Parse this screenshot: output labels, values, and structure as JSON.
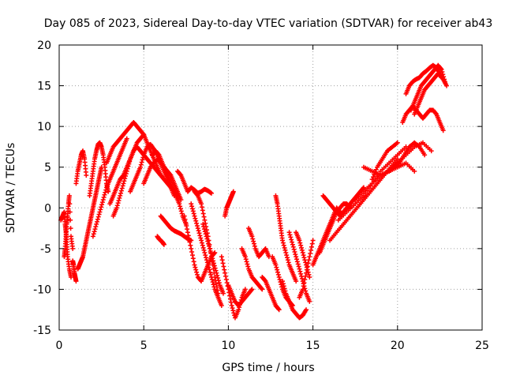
{
  "chart_data": {
    "type": "scatter",
    "title": "Day 085 of 2023, Sidereal Day-to-day VTEC variation (SDTVAR) for receiver ab43",
    "xlabel": "GPS time / hours",
    "ylabel": "SDTVAR / TECUs",
    "xlim": [
      0,
      25
    ],
    "ylim": [
      -15,
      20
    ],
    "xticks": [
      "0",
      "5",
      "10",
      "15",
      "20",
      "25"
    ],
    "yticks": [
      "-15",
      "-10",
      "-5",
      "0",
      "5",
      "10",
      "15",
      "20"
    ],
    "grid": true,
    "marker": "+",
    "color": "#ff0000",
    "series": [
      {
        "x": [
          0.1,
          0.2,
          0.3,
          0.35,
          0.4,
          0.45,
          0.5,
          0.6,
          0.7
        ],
        "y": [
          -1.5,
          -1.0,
          -0.5,
          -2.0,
          -3.0,
          -4.5,
          -6.0,
          -7.5,
          -8.5
        ]
      },
      {
        "x": [
          0.3,
          0.35,
          0.4,
          0.45,
          0.5,
          0.55,
          0.6,
          0.7,
          0.8
        ],
        "y": [
          -6.0,
          -5.0,
          -3.5,
          -2.0,
          -1.0,
          0.5,
          1.5,
          -3.5,
          -5.0
        ]
      },
      {
        "x": [
          0.8,
          0.85,
          0.9,
          0.95,
          1.0
        ],
        "y": [
          -6.5,
          -7.0,
          -8.0,
          -8.5,
          -9.0
        ]
      },
      {
        "x": [
          1.0,
          1.1,
          1.2,
          1.3,
          1.4,
          1.5,
          1.6
        ],
        "y": [
          3.0,
          4.5,
          5.5,
          6.5,
          7.0,
          6.0,
          4.0
        ]
      },
      {
        "x": [
          1.1,
          1.2,
          1.3,
          1.4,
          1.5,
          1.6,
          1.7,
          1.8,
          1.9,
          2.0,
          2.1,
          2.2,
          2.3,
          2.4,
          2.5
        ],
        "y": [
          -7.5,
          -7.0,
          -6.5,
          -6.0,
          -5.0,
          -4.0,
          -3.0,
          -2.0,
          -1.0,
          0.0,
          1.0,
          2.0,
          3.0,
          4.0,
          5.0
        ]
      },
      {
        "x": [
          1.8,
          1.9,
          2.0,
          2.1,
          2.2,
          2.3,
          2.4,
          2.5,
          2.6,
          2.7,
          2.8,
          2.9
        ],
        "y": [
          1.5,
          3.0,
          4.5,
          6.0,
          7.0,
          7.8,
          8.0,
          7.5,
          6.5,
          5.0,
          3.0,
          2.0
        ]
      },
      {
        "x": [
          2.0,
          2.2,
          2.4,
          2.6,
          2.8,
          3.0,
          3.2,
          3.4,
          3.6,
          3.8,
          4.0
        ],
        "y": [
          -3.5,
          -2.0,
          -0.5,
          1.0,
          2.5,
          3.5,
          4.5,
          5.5,
          6.5,
          7.5,
          8.5
        ]
      },
      {
        "x": [
          2.8,
          3.0,
          3.2,
          3.4,
          3.6,
          3.8,
          4.0,
          4.2,
          4.4,
          4.6,
          4.8,
          5.0
        ],
        "y": [
          5.5,
          6.5,
          7.5,
          8.0,
          8.5,
          9.0,
          9.5,
          10.0,
          10.5,
          10.0,
          9.5,
          9.0
        ]
      },
      {
        "x": [
          3.0,
          3.2,
          3.4,
          3.6,
          3.8,
          4.0,
          4.2,
          4.4,
          4.6,
          4.8,
          5.0,
          5.2,
          5.4,
          5.6,
          5.8,
          6.0
        ],
        "y": [
          0.5,
          1.5,
          2.5,
          3.5,
          4.0,
          5.0,
          6.0,
          7.0,
          8.0,
          8.5,
          9.0,
          8.0,
          7.0,
          6.0,
          5.0,
          4.0
        ]
      },
      {
        "x": [
          3.2,
          3.4,
          3.6,
          3.8,
          4.0,
          4.2,
          4.4,
          4.6,
          4.8,
          5.0,
          5.2,
          5.4,
          5.6,
          5.8,
          6.0,
          6.2,
          6.4,
          6.6,
          6.8,
          7.0
        ],
        "y": [
          -1.0,
          0.0,
          1.5,
          3.0,
          4.5,
          6.0,
          7.0,
          7.5,
          7.0,
          6.5,
          6.0,
          5.5,
          5.0,
          4.5,
          4.0,
          3.5,
          3.0,
          2.5,
          2.0,
          1.5
        ]
      },
      {
        "x": [
          4.2,
          4.4,
          4.6,
          4.8,
          5.0,
          5.2,
          5.4,
          5.6,
          5.8,
          6.0,
          6.2,
          6.4,
          6.6,
          6.8
        ],
        "y": [
          2.0,
          3.0,
          4.0,
          5.0,
          6.5,
          7.5,
          7.8,
          7.2,
          6.5,
          5.5,
          4.5,
          3.5,
          2.5,
          1.5
        ]
      },
      {
        "x": [
          5.0,
          5.2,
          5.4,
          5.6,
          5.8,
          6.0,
          6.2,
          6.4,
          6.6,
          6.8,
          7.0,
          7.2
        ],
        "y": [
          3.0,
          4.0,
          5.0,
          5.5,
          6.0,
          5.5,
          5.0,
          4.5,
          4.0,
          3.0,
          2.0,
          1.0
        ]
      },
      {
        "x": [
          5.5,
          5.7,
          5.9,
          6.1,
          6.3,
          6.5,
          6.7,
          6.9,
          7.1,
          7.3,
          7.5
        ],
        "y": [
          6.5,
          7.0,
          6.5,
          5.5,
          4.5,
          3.5,
          2.5,
          1.5,
          0.5,
          -1.0,
          -2.0
        ]
      },
      {
        "x": [
          5.8,
          5.9,
          6.0,
          6.1,
          6.2
        ],
        "y": [
          -3.5,
          -3.8,
          -4.0,
          -4.2,
          -4.5
        ]
      },
      {
        "x": [
          6.0,
          6.2,
          6.4,
          6.6,
          6.8,
          7.0,
          7.2,
          7.4,
          7.6,
          7.8
        ],
        "y": [
          -1.0,
          -1.5,
          -2.0,
          -2.5,
          -2.8,
          -3.0,
          -3.2,
          -3.5,
          -3.8,
          -4.0
        ]
      },
      {
        "x": [
          7.0,
          7.2,
          7.4,
          7.6,
          7.8,
          8.0,
          8.2,
          8.4,
          8.6,
          8.8,
          9.0
        ],
        "y": [
          4.5,
          4.0,
          3.0,
          2.0,
          2.5,
          2.2,
          1.8,
          2.0,
          2.3,
          2.1,
          1.8
        ]
      },
      {
        "x": [
          7.4,
          7.6,
          7.8,
          8.0,
          8.2,
          8.4,
          8.6,
          8.8,
          9.0,
          9.2
        ],
        "y": [
          -1.0,
          -3.0,
          -5.0,
          -7.0,
          -8.5,
          -9.0,
          -8.0,
          -7.0,
          -6.0,
          -5.5
        ]
      },
      {
        "x": [
          7.8,
          8.0,
          8.2,
          8.4,
          8.6,
          8.8,
          9.0,
          9.2,
          9.4,
          9.6
        ],
        "y": [
          0.5,
          -1.0,
          -2.5,
          -4.0,
          -5.5,
          -7.0,
          -8.5,
          -10.0,
          -11.0,
          -12.0
        ]
      },
      {
        "x": [
          8.0,
          8.2,
          8.4,
          8.6,
          8.8,
          9.0,
          9.2,
          9.4
        ],
        "y": [
          2.0,
          1.5,
          0.5,
          -1.5,
          -3.5,
          -6.0,
          -8.5,
          -10.5
        ]
      },
      {
        "x": [
          8.5,
          8.7,
          8.9,
          9.1,
          9.3,
          9.5,
          9.7
        ],
        "y": [
          -2.0,
          -3.5,
          -5.0,
          -6.5,
          -8.0,
          -9.5,
          -10.5
        ]
      },
      {
        "x": [
          9.6,
          9.8,
          10.0,
          10.2,
          10.4,
          10.6,
          10.8,
          11.0
        ],
        "y": [
          -6.0,
          -8.0,
          -10.0,
          -12.0,
          -13.5,
          -12.5,
          -11.0,
          -10.0
        ]
      },
      {
        "x": [
          9.8,
          9.9,
          10.0,
          10.1,
          10.2,
          10.3
        ],
        "y": [
          -1.0,
          0.0,
          0.5,
          1.0,
          1.5,
          2.0
        ]
      },
      {
        "x": [
          10.0,
          10.2,
          10.4,
          10.6,
          10.8,
          11.0,
          11.2,
          11.4
        ],
        "y": [
          -9.5,
          -10.5,
          -11.5,
          -12.0,
          -11.5,
          -11.0,
          -10.5,
          -10.0
        ]
      },
      {
        "x": [
          10.8,
          11.0,
          11.2,
          11.4,
          11.6,
          11.8,
          12.0
        ],
        "y": [
          -5.0,
          -6.0,
          -7.5,
          -8.5,
          -9.0,
          -9.5,
          -10.0
        ]
      },
      {
        "x": [
          11.2,
          11.4,
          11.6,
          11.8,
          12.0,
          12.2,
          12.4
        ],
        "y": [
          -2.5,
          -3.5,
          -5.0,
          -6.0,
          -5.5,
          -5.0,
          -6.0
        ]
      },
      {
        "x": [
          12.0,
          12.2,
          12.4,
          12.6,
          12.8,
          13.0
        ],
        "y": [
          -8.5,
          -9.0,
          -10.0,
          -11.0,
          -12.0,
          -12.5
        ]
      },
      {
        "x": [
          12.6,
          12.8,
          13.0,
          13.2,
          13.4,
          13.6,
          13.8
        ],
        "y": [
          -6.0,
          -7.0,
          -8.5,
          -10.0,
          -11.0,
          -11.5,
          -12.0
        ]
      },
      {
        "x": [
          12.8,
          12.9,
          13.0,
          13.1,
          13.2,
          13.4,
          13.6,
          13.8,
          14.0
        ],
        "y": [
          1.5,
          0.5,
          -1.0,
          -2.5,
          -4.0,
          -5.5,
          -7.0,
          -8.0,
          -9.0
        ]
      },
      {
        "x": [
          13.2,
          13.4,
          13.6,
          13.8,
          14.0,
          14.2,
          14.4,
          14.6
        ],
        "y": [
          -9.0,
          -10.5,
          -11.5,
          -12.5,
          -13.0,
          -13.5,
          -13.2,
          -12.5
        ]
      },
      {
        "x": [
          13.6,
          13.8,
          14.0,
          14.2,
          14.4,
          14.6,
          14.8
        ],
        "y": [
          -3.0,
          -4.5,
          -6.0,
          -7.5,
          -9.0,
          -10.5,
          -11.5
        ]
      },
      {
        "x": [
          14.2,
          14.4,
          14.6,
          14.8,
          15.0
        ],
        "y": [
          -11.0,
          -10.0,
          -8.0,
          -6.0,
          -4.0
        ]
      },
      {
        "x": [
          14.0,
          14.2,
          14.4,
          14.6,
          14.8
        ],
        "y": [
          -3.0,
          -4.0,
          -5.5,
          -7.0,
          -8.5
        ]
      },
      {
        "x": [
          15.0,
          15.2,
          15.4,
          15.6,
          15.8,
          16.0,
          16.2,
          16.4,
          16.6
        ],
        "y": [
          -7.0,
          -6.0,
          -5.0,
          -4.0,
          -3.0,
          -2.0,
          -1.0,
          0.0,
          -0.5
        ]
      },
      {
        "x": [
          15.4,
          15.6,
          15.8,
          16.0,
          16.2,
          16.4,
          16.6,
          16.8,
          17.0,
          17.2
        ],
        "y": [
          -5.5,
          -4.5,
          -3.5,
          -2.5,
          -1.5,
          -0.5,
          0.0,
          0.5,
          0.5,
          0.0
        ]
      },
      {
        "x": [
          15.6,
          15.8,
          16.0,
          16.2,
          16.4,
          16.6,
          16.8,
          17.0,
          17.2,
          17.4,
          17.6,
          17.8,
          18.0
        ],
        "y": [
          1.5,
          1.0,
          0.5,
          0.0,
          -0.5,
          -1.0,
          -0.5,
          0.0,
          0.5,
          1.0,
          1.5,
          2.0,
          2.5
        ]
      },
      {
        "x": [
          16.0,
          16.4,
          16.8,
          17.2,
          17.6,
          18.0,
          18.4,
          18.8,
          19.2,
          19.6,
          20.0
        ],
        "y": [
          -4.0,
          -3.0,
          -2.0,
          -1.0,
          0.0,
          1.0,
          2.0,
          3.0,
          4.0,
          5.0,
          6.0
        ]
      },
      {
        "x": [
          16.5,
          17.0,
          17.5,
          18.0,
          18.5,
          19.0,
          19.5,
          20.0,
          20.5
        ],
        "y": [
          -1.5,
          -0.5,
          0.5,
          1.5,
          3.0,
          4.5,
          5.5,
          6.5,
          7.5
        ]
      },
      {
        "x": [
          17.5,
          18.0,
          18.5,
          19.0,
          19.5,
          20.0,
          20.5,
          21.0
        ],
        "y": [
          1.0,
          2.0,
          3.0,
          4.0,
          4.5,
          5.0,
          5.5,
          4.5
        ]
      },
      {
        "x": [
          18.0,
          18.5,
          19.0,
          19.5,
          20.0,
          20.5,
          21.0,
          21.5,
          22.0
        ],
        "y": [
          5.0,
          4.5,
          4.0,
          4.5,
          5.5,
          6.5,
          7.5,
          8.0,
          7.0
        ]
      },
      {
        "x": [
          18.5,
          18.8,
          19.1,
          19.4,
          19.7,
          20.0
        ],
        "y": [
          3.5,
          5.0,
          6.0,
          7.0,
          7.5,
          8.0
        ]
      },
      {
        "x": [
          19.5,
          19.8,
          20.1,
          20.4,
          20.7,
          21.0,
          21.3,
          21.6
        ],
        "y": [
          4.5,
          5.0,
          5.5,
          6.5,
          7.5,
          8.0,
          7.5,
          6.5
        ]
      },
      {
        "x": [
          20.3,
          20.5,
          20.7,
          20.9,
          21.1,
          21.3,
          21.5,
          21.7,
          21.9,
          22.1,
          22.3,
          22.5,
          22.7
        ],
        "y": [
          10.5,
          11.5,
          12.0,
          12.5,
          12.0,
          11.5,
          11.0,
          11.5,
          12.0,
          12.0,
          11.5,
          10.5,
          9.5
        ]
      },
      {
        "x": [
          20.8,
          21.0,
          21.2,
          21.4,
          21.6,
          21.8,
          22.0,
          22.2,
          22.4,
          22.6,
          22.8
        ],
        "y": [
          12.0,
          13.0,
          14.0,
          15.0,
          15.5,
          16.0,
          16.5,
          17.0,
          17.5,
          17.0,
          15.5
        ]
      },
      {
        "x": [
          20.5,
          20.7,
          20.9,
          21.1,
          21.3,
          21.5,
          21.7,
          21.9,
          22.1,
          22.3,
          22.5,
          22.7,
          22.9
        ],
        "y": [
          14.0,
          15.0,
          15.5,
          15.8,
          16.0,
          16.5,
          16.8,
          17.2,
          17.5,
          17.2,
          16.5,
          15.8,
          15.0
        ]
      },
      {
        "x": [
          21.0,
          21.2,
          21.4,
          21.6,
          21.8,
          22.0,
          22.2,
          22.4,
          22.6
        ],
        "y": [
          11.5,
          12.5,
          13.5,
          14.5,
          15.0,
          15.5,
          16.0,
          16.5,
          16.0
        ]
      }
    ]
  }
}
